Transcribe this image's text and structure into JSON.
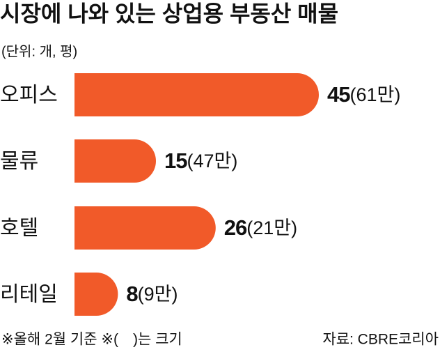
{
  "chart_data": {
    "type": "bar",
    "orientation": "horizontal",
    "title": "시장에 나와 있는 상업용 부동산 매물",
    "subtitle": "(단위: 개, 평)",
    "categories": [
      "오피스",
      "물류",
      "호텔",
      "리테일"
    ],
    "values": [
      45,
      15,
      26,
      8
    ],
    "sizes": [
      610000,
      470000,
      210000,
      90000
    ],
    "size_labels": [
      "(61만)",
      "(47만)",
      "(21만)",
      "(9만)"
    ],
    "color": "#f15a29",
    "xlim": [
      0,
      45
    ],
    "note": "※올해 2월 기준 ※(　)는 크기",
    "source": "자료: CBRE코리아"
  }
}
